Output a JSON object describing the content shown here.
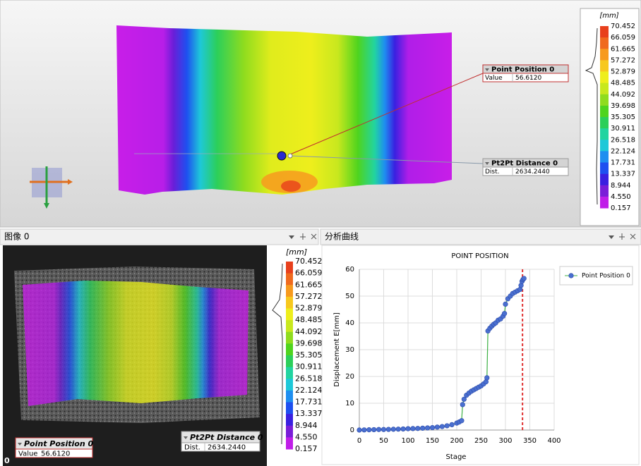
{
  "colorbar": {
    "unit": "[mm]",
    "labels": [
      "70.452",
      "66.059",
      "61.665",
      "57.272",
      "52.879",
      "48.485",
      "44.092",
      "39.698",
      "35.305",
      "30.911",
      "26.518",
      "22.124",
      "17.731",
      "13.337",
      "8.944",
      "4.550",
      "0.157"
    ],
    "colors": [
      "#e8401c",
      "#f06a1e",
      "#f79a1e",
      "#f7c81e",
      "#eeee1c",
      "#c8e81e",
      "#8fdc1e",
      "#4fd41e",
      "#2ccf5a",
      "#22d4a0",
      "#1ec8d8",
      "#1e8ef0",
      "#1e50f0",
      "#3a20e0",
      "#7a1ed8",
      "#c01ee8"
    ]
  },
  "annotations": {
    "point": {
      "title": "Point Position 0",
      "key": "Value",
      "value": "56.6120"
    },
    "distance": {
      "title": "Pt2Pt Distance 0",
      "key": "Dist.",
      "value": "2634.2440"
    }
  },
  "panels": {
    "image": {
      "title": "图像 0",
      "frame": "0"
    },
    "curve": {
      "title": "分析曲线"
    }
  },
  "chart_data": {
    "type": "line",
    "title": "POINT POSITION",
    "x_label": "Stage",
    "y_label": "Displacement E[mm]",
    "x": [
      0,
      10,
      20,
      30,
      40,
      50,
      60,
      70,
      80,
      90,
      100,
      110,
      120,
      130,
      140,
      150,
      160,
      170,
      180,
      190,
      200,
      205,
      210,
      212,
      215,
      220,
      225,
      230,
      235,
      240,
      245,
      250,
      255,
      260,
      262,
      264,
      268,
      272,
      276,
      280,
      285,
      290,
      295,
      298,
      300,
      305,
      310,
      315,
      320,
      325,
      330,
      332,
      334,
      336,
      338
    ],
    "series": [
      {
        "name": "Point Position 0",
        "color": "#4a6fd0",
        "line_color": "#3cb043",
        "values": [
          0,
          0.05,
          0.1,
          0.15,
          0.2,
          0.2,
          0.25,
          0.3,
          0.35,
          0.4,
          0.5,
          0.55,
          0.6,
          0.7,
          0.8,
          0.9,
          1.1,
          1.3,
          1.6,
          2.0,
          2.6,
          3.0,
          3.5,
          9.5,
          11.5,
          13,
          13.8,
          14.5,
          15,
          15.5,
          16,
          16.5,
          17.2,
          18,
          19.5,
          37,
          38,
          38.8,
          39.5,
          40,
          41,
          41.5,
          42.5,
          43.5,
          47,
          49,
          50,
          51,
          51.5,
          52,
          52.5,
          54,
          55.5,
          56.2,
          56.6
        ]
      }
    ],
    "xlim": [
      0,
      400
    ],
    "xticks": [
      0,
      50,
      100,
      150,
      200,
      250,
      300,
      350,
      400
    ],
    "ylim": [
      0,
      60
    ],
    "yticks": [
      0,
      10,
      20,
      30,
      40,
      50,
      60
    ],
    "grid": true,
    "legend": "right",
    "vline": {
      "x": 335,
      "color": "#e03030"
    }
  }
}
